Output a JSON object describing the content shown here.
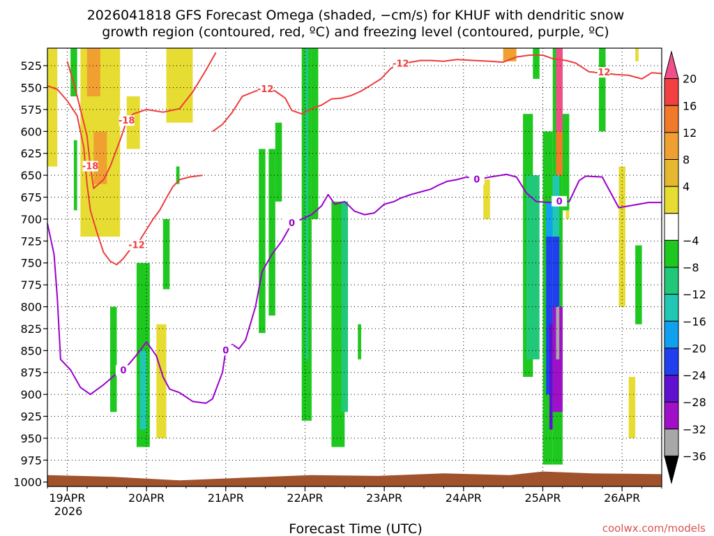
{
  "chart_data": {
    "type": "heatmap",
    "title_line1": "2026041818 GFS Forecast Omega (shaded, −cm/s) for KHUF with dendritic snow",
    "title_line2": "growth region (contoured, red, ºC) and freezing level (contoured, purple, ºC)",
    "xlabel": "Forecast Time (UTC)",
    "credit": "coolwx.com/models",
    "year_label": "2026",
    "x_range_hours": [
      0,
      186
    ],
    "x_ticks": [
      {
        "label": "19APR",
        "hour": 6
      },
      {
        "label": "20APR",
        "hour": 30
      },
      {
        "label": "21APR",
        "hour": 54
      },
      {
        "label": "22APR",
        "hour": 78
      },
      {
        "label": "23APR",
        "hour": 102
      },
      {
        "label": "24APR",
        "hour": 126
      },
      {
        "label": "25APR",
        "hour": 150
      },
      {
        "label": "26APR",
        "hour": 174
      }
    ],
    "y_ticks": [
      525,
      550,
      575,
      600,
      625,
      650,
      675,
      700,
      725,
      750,
      775,
      800,
      825,
      850,
      875,
      900,
      925,
      950,
      975,
      1000
    ],
    "y_range_hpa": [
      505,
      1005
    ],
    "colorbar": {
      "levels": [
        20,
        16,
        12,
        8,
        4,
        -4,
        -8,
        -12,
        -16,
        -20,
        -24,
        -28,
        -32,
        -36
      ],
      "colors_top_to_bottom": [
        "#f0508a",
        "#f24040",
        "#f07a2a",
        "#f0a030",
        "#e6b830",
        "#e6dc32",
        "#ffffff",
        "#1ec81e",
        "#20c878",
        "#20c8b4",
        "#10a0f0",
        "#2040f0",
        "#6010d0",
        "#a010c8",
        "#a8a8a8",
        "#000000"
      ]
    },
    "freezing_level": {
      "label": "0",
      "color": "#9900cc",
      "points": [
        [
          0,
          705
        ],
        [
          2,
          740
        ],
        [
          3,
          790
        ],
        [
          4,
          860
        ],
        [
          7,
          872
        ],
        [
          10,
          892
        ],
        [
          13,
          900
        ],
        [
          17,
          889
        ],
        [
          21,
          876
        ],
        [
          23,
          873
        ],
        [
          27,
          855
        ],
        [
          30,
          840
        ],
        [
          33,
          856
        ],
        [
          35,
          880
        ],
        [
          37,
          894
        ],
        [
          40,
          898
        ],
        [
          44,
          908
        ],
        [
          48,
          910
        ],
        [
          50,
          905
        ],
        [
          53,
          875
        ],
        [
          54,
          850
        ],
        [
          56,
          843
        ],
        [
          58,
          848
        ],
        [
          60,
          838
        ],
        [
          63,
          800
        ],
        [
          65,
          760
        ],
        [
          68,
          740
        ],
        [
          71,
          725
        ],
        [
          74,
          705
        ],
        [
          77,
          700
        ],
        [
          80,
          695
        ],
        [
          83,
          685
        ],
        [
          85,
          672
        ],
        [
          87,
          683
        ],
        [
          90,
          680
        ],
        [
          93,
          691
        ],
        [
          96,
          695
        ],
        [
          99,
          693
        ],
        [
          102,
          683
        ],
        [
          105,
          680
        ],
        [
          107,
          676
        ],
        [
          110,
          672
        ],
        [
          113,
          669
        ],
        [
          116,
          666
        ],
        [
          118,
          662
        ],
        [
          121,
          657
        ],
        [
          124,
          655
        ],
        [
          127,
          652
        ],
        [
          130,
          655
        ],
        [
          134,
          652
        ],
        [
          139,
          649
        ],
        [
          142,
          652
        ],
        [
          145,
          670
        ],
        [
          148,
          680
        ],
        [
          152,
          681
        ],
        [
          155,
          680
        ],
        [
          158,
          680
        ],
        [
          161,
          656
        ],
        [
          163,
          651
        ],
        [
          168,
          652
        ],
        [
          173,
          687
        ],
        [
          176,
          685
        ],
        [
          182,
          681
        ],
        [
          186,
          681
        ]
      ]
    },
    "isotherm_m12": {
      "label": "-12",
      "color": "#ee3c3c",
      "points": [
        [
          50,
          600
        ],
        [
          53,
          592
        ],
        [
          56,
          578
        ],
        [
          59,
          560
        ],
        [
          63,
          554
        ],
        [
          66,
          552
        ],
        [
          69,
          554
        ],
        [
          72,
          562
        ],
        [
          74,
          576
        ],
        [
          77,
          580
        ],
        [
          80,
          574
        ],
        [
          83,
          570
        ],
        [
          86,
          563
        ],
        [
          89,
          562
        ],
        [
          92,
          559
        ],
        [
          95,
          554
        ],
        [
          98,
          547
        ],
        [
          101,
          540
        ],
        [
          104,
          528
        ],
        [
          107,
          523
        ],
        [
          110,
          521
        ],
        [
          113,
          519
        ],
        [
          116,
          519
        ],
        [
          120,
          520
        ],
        [
          124,
          518
        ],
        [
          129,
          519
        ],
        [
          134,
          520
        ],
        [
          138,
          521
        ],
        [
          142,
          515
        ],
        [
          146,
          513
        ],
        [
          150,
          513
        ],
        [
          153,
          517
        ],
        [
          157,
          519
        ],
        [
          160,
          522
        ],
        [
          164,
          532
        ],
        [
          168,
          533
        ],
        [
          172,
          535
        ],
        [
          176,
          536
        ],
        [
          180,
          540
        ],
        [
          183,
          533
        ],
        [
          186,
          534
        ]
      ]
    },
    "isotherm_m12_lower": {
      "label": "-12",
      "color": "#ee3c3c",
      "points": [
        [
          0,
          548
        ],
        [
          3,
          552
        ],
        [
          6,
          565
        ],
        [
          9,
          582
        ],
        [
          11,
          618
        ],
        [
          12,
          660
        ],
        [
          13,
          690
        ],
        [
          15,
          715
        ],
        [
          17,
          738
        ],
        [
          19,
          748
        ],
        [
          21,
          752
        ],
        [
          23,
          745
        ],
        [
          25,
          735
        ],
        [
          27,
          730
        ],
        [
          29,
          718
        ],
        [
          32,
          700
        ],
        [
          34,
          690
        ],
        [
          36,
          676
        ],
        [
          38,
          663
        ],
        [
          40,
          655
        ],
        [
          43,
          652
        ],
        [
          47,
          650
        ]
      ]
    },
    "isotherm_m18": {
      "label": "-18",
      "color": "#ee3c3c",
      "points": [
        [
          6,
          520
        ],
        [
          8,
          545
        ],
        [
          10,
          575
        ],
        [
          12,
          605
        ],
        [
          13,
          640
        ],
        [
          14,
          665
        ],
        [
          17,
          655
        ],
        [
          19,
          640
        ],
        [
          22,
          610
        ],
        [
          24,
          588
        ],
        [
          26,
          580
        ],
        [
          30,
          575
        ],
        [
          35,
          578
        ],
        [
          40,
          574
        ],
        [
          44,
          555
        ],
        [
          48,
          530
        ],
        [
          51,
          510
        ]
      ]
    },
    "omega_cells": [
      {
        "h0": 0,
        "h1": 3,
        "p0": 505,
        "p1": 640,
        "v": 5
      },
      {
        "h0": 10,
        "h1": 22,
        "p0": 505,
        "p1": 720,
        "v": 5
      },
      {
        "h0": 12,
        "h1": 16,
        "p0": 505,
        "p1": 560,
        "v": 10
      },
      {
        "h0": 14,
        "h1": 18,
        "p0": 600,
        "p1": 660,
        "v": 9
      },
      {
        "h0": 24,
        "h1": 28,
        "p0": 560,
        "p1": 620,
        "v": 5
      },
      {
        "h0": 36,
        "h1": 44,
        "p0": 505,
        "p1": 590,
        "v": 5
      },
      {
        "h0": 7,
        "h1": 9,
        "p0": 505,
        "p1": 560,
        "v": -5
      },
      {
        "h0": 8,
        "h1": 9,
        "p0": 610,
        "p1": 690,
        "v": -5
      },
      {
        "h0": 19,
        "h1": 21,
        "p0": 800,
        "p1": 920,
        "v": -6
      },
      {
        "h0": 27,
        "h1": 31,
        "p0": 750,
        "p1": 960,
        "v": -7
      },
      {
        "h0": 28,
        "h1": 30,
        "p0": 850,
        "p1": 940,
        "v": -14
      },
      {
        "h0": 33,
        "h1": 36,
        "p0": 820,
        "p1": 950,
        "v": 5
      },
      {
        "h0": 35,
        "h1": 37,
        "p0": 700,
        "p1": 780,
        "v": -6
      },
      {
        "h0": 39,
        "h1": 40,
        "p0": 640,
        "p1": 660,
        "v": -5
      },
      {
        "h0": 64,
        "h1": 66,
        "p0": 620,
        "p1": 830,
        "v": -6
      },
      {
        "h0": 67,
        "h1": 69,
        "p0": 620,
        "p1": 810,
        "v": -6
      },
      {
        "h0": 69,
        "h1": 71,
        "p0": 590,
        "p1": 680,
        "v": -5
      },
      {
        "h0": 77,
        "h1": 80,
        "p0": 505,
        "p1": 930,
        "v": -6
      },
      {
        "h0": 78,
        "h1": 79,
        "p0": 505,
        "p1": 860,
        "v": -10
      },
      {
        "h0": 80,
        "h1": 82,
        "p0": 505,
        "p1": 700,
        "v": -5
      },
      {
        "h0": 86,
        "h1": 90,
        "p0": 680,
        "p1": 960,
        "v": -6
      },
      {
        "h0": 89,
        "h1": 91,
        "p0": 680,
        "p1": 920,
        "v": -10
      },
      {
        "h0": 94,
        "h1": 95,
        "p0": 820,
        "p1": 860,
        "v": -5
      },
      {
        "h0": 132,
        "h1": 134,
        "p0": 655,
        "p1": 700,
        "v": 5
      },
      {
        "h0": 138,
        "h1": 142,
        "p0": 505,
        "p1": 520,
        "v": 8
      },
      {
        "h0": 144,
        "h1": 147,
        "p0": 580,
        "p1": 880,
        "v": -6
      },
      {
        "h0": 145,
        "h1": 149,
        "p0": 650,
        "p1": 860,
        "v": -11
      },
      {
        "h0": 147,
        "h1": 149,
        "p0": 505,
        "p1": 540,
        "v": -6
      },
      {
        "h0": 150,
        "h1": 153,
        "p0": 600,
        "p1": 980,
        "v": -6
      },
      {
        "h0": 151,
        "h1": 153,
        "p0": 680,
        "p1": 900,
        "v": -16
      },
      {
        "h0": 151,
        "h1": 153,
        "p0": 720,
        "p1": 900,
        "v": -22
      },
      {
        "h0": 152,
        "h1": 153,
        "p0": 820,
        "p1": 940,
        "v": -27
      },
      {
        "h0": 153,
        "h1": 156,
        "p0": 505,
        "p1": 980,
        "v": -6
      },
      {
        "h0": 154,
        "h1": 156,
        "p0": 505,
        "p1": 620,
        "v": 21
      },
      {
        "h0": 154,
        "h1": 156,
        "p0": 600,
        "p1": 650,
        "v": 15
      },
      {
        "h0": 153,
        "h1": 155,
        "p0": 650,
        "p1": 720,
        "v": -15
      },
      {
        "h0": 153,
        "h1": 155,
        "p0": 720,
        "p1": 800,
        "v": -22
      },
      {
        "h0": 153,
        "h1": 156,
        "p0": 800,
        "p1": 920,
        "v": -30
      },
      {
        "h0": 154,
        "h1": 155,
        "p0": 800,
        "p1": 860,
        "v": -34
      },
      {
        "h0": 156,
        "h1": 158,
        "p0": 580,
        "p1": 690,
        "v": -6
      },
      {
        "h0": 157,
        "h1": 158,
        "p0": 690,
        "p1": 700,
        "v": 5
      },
      {
        "h0": 167,
        "h1": 169,
        "p0": 505,
        "p1": 600,
        "v": -6
      },
      {
        "h0": 173,
        "h1": 175,
        "p0": 640,
        "p1": 800,
        "v": 5
      },
      {
        "h0": 176,
        "h1": 178,
        "p0": 880,
        "p1": 950,
        "v": 5
      },
      {
        "h0": 178,
        "h1": 180,
        "p0": 730,
        "p1": 820,
        "v": -6
      },
      {
        "h0": 178,
        "h1": 179,
        "p0": 505,
        "p1": 520,
        "v": 5
      }
    ],
    "terrain_surface_hpa": [
      [
        0,
        992
      ],
      [
        20,
        994
      ],
      [
        40,
        998
      ],
      [
        60,
        995
      ],
      [
        80,
        992
      ],
      [
        100,
        993
      ],
      [
        120,
        990
      ],
      [
        140,
        992
      ],
      [
        150,
        988
      ],
      [
        165,
        990
      ],
      [
        186,
        991
      ]
    ]
  }
}
